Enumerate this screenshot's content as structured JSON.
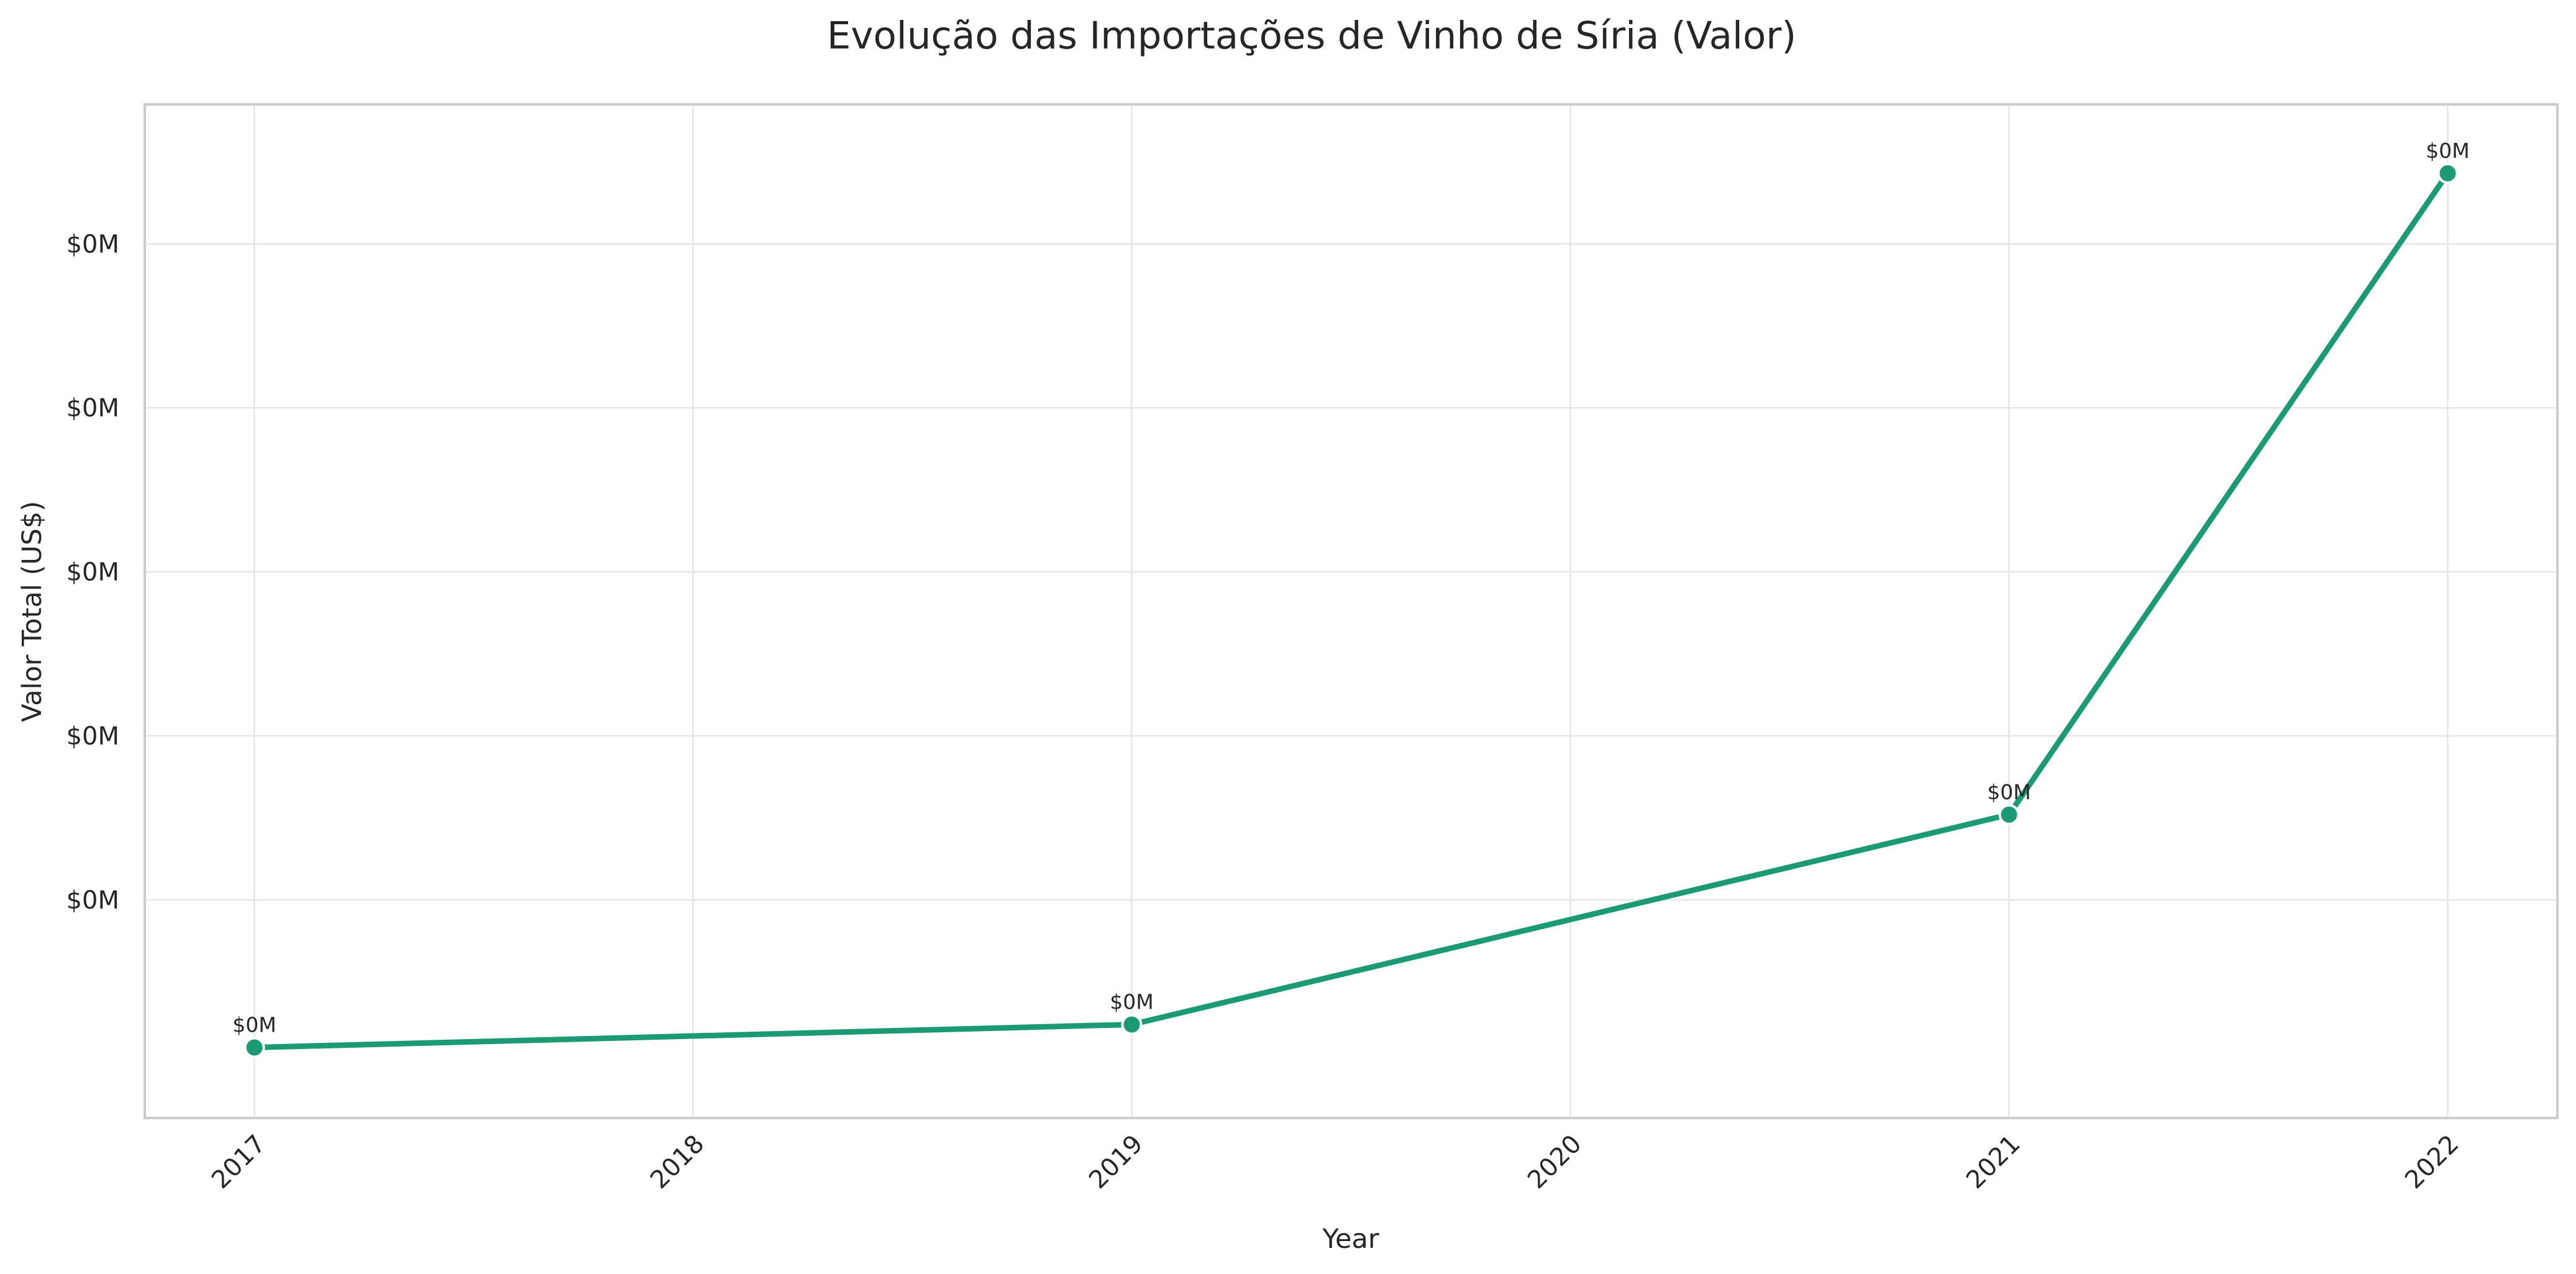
{
  "chart_data": {
    "type": "line",
    "title": "Evolução das Importações de Vinho de Síria (Valor)",
    "xlabel": "Year",
    "ylabel": "Valor Total (US$)",
    "x": [
      2017,
      2019,
      2021,
      2022
    ],
    "x_ticks": [
      "2017",
      "2018",
      "2019",
      "2020",
      "2021",
      "2022"
    ],
    "y_ticks": [
      "$0M",
      "$0M",
      "$0M",
      "$0M",
      "$0M"
    ],
    "point_labels": [
      "$0M",
      "$0M",
      "$0M",
      "$0M"
    ],
    "series": [
      {
        "values": [
          1100,
          1240,
          2520,
          6430
        ],
        "color": "#1b9a75"
      }
    ],
    "ylim": [
      670,
      6850
    ],
    "xlim": [
      2016.75,
      2022.25
    ],
    "grid": true,
    "legend": "none"
  }
}
